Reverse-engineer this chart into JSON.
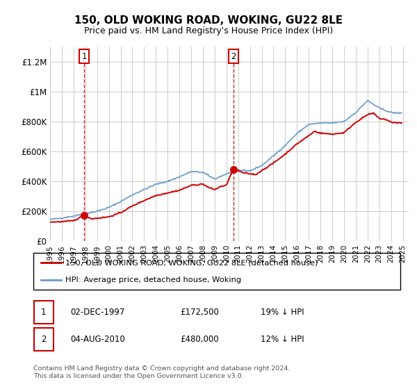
{
  "title": "150, OLD WOKING ROAD, WOKING, GU22 8LE",
  "subtitle": "Price paid vs. HM Land Registry's House Price Index (HPI)",
  "ylabel_ticks": [
    "£0",
    "£200K",
    "£400K",
    "£600K",
    "£800K",
    "£1M",
    "£1.2M"
  ],
  "ytick_values": [
    0,
    200000,
    400000,
    600000,
    800000,
    1000000,
    1200000
  ],
  "ylim": [
    0,
    1300000
  ],
  "xlim_start": 1995.0,
  "xlim_end": 2025.5,
  "sale1_date": 1997.92,
  "sale1_price": 172500,
  "sale2_date": 2010.58,
  "sale2_price": 480000,
  "legend_line1": "150, OLD WOKING ROAD, WOKING, GU22 8LE (detached house)",
  "legend_line2": "HPI: Average price, detached house, Woking",
  "table_row1": [
    "1",
    "02-DEC-1997",
    "£172,500",
    "19% ↓ HPI"
  ],
  "table_row2": [
    "2",
    "04-AUG-2010",
    "£480,000",
    "12% ↓ HPI"
  ],
  "footer": "Contains HM Land Registry data © Crown copyright and database right 2024.\nThis data is licensed under the Open Government Licence v3.0.",
  "hpi_color": "#6699cc",
  "price_color": "#cc0000",
  "grid_color": "#cccccc",
  "dashed_color": "#cc0000",
  "hpi_anchors_x": [
    1995.0,
    1996.0,
    1997.0,
    1998.0,
    1999.0,
    2000.0,
    2001.0,
    2002.0,
    2003.0,
    2004.0,
    2005.0,
    2006.0,
    2007.0,
    2008.0,
    2009.0,
    2010.0,
    2011.0,
    2012.0,
    2013.0,
    2014.0,
    2015.0,
    2016.0,
    2017.0,
    2018.0,
    2019.0,
    2020.0,
    2021.0,
    2022.0,
    2023.0,
    2024.0,
    2024.9
  ],
  "hpi_anchors_y": [
    145000,
    155000,
    168000,
    185000,
    200000,
    225000,
    265000,
    310000,
    345000,
    380000,
    400000,
    430000,
    465000,
    460000,
    415000,
    450000,
    475000,
    470000,
    505000,
    570000,
    640000,
    720000,
    780000,
    790000,
    790000,
    800000,
    860000,
    940000,
    890000,
    860000,
    855000
  ],
  "price_anchors_x": [
    1995.0,
    1996.0,
    1997.0,
    1997.92,
    1998.5,
    1999.0,
    2000.0,
    2001.0,
    2002.0,
    2003.0,
    2004.0,
    2005.0,
    2006.0,
    2007.0,
    2008.0,
    2008.5,
    2009.0,
    2009.5,
    2010.0,
    2010.58,
    2011.0,
    2011.5,
    2012.0,
    2012.5,
    2013.0,
    2014.0,
    2015.0,
    2016.0,
    2017.0,
    2017.5,
    2018.0,
    2019.0,
    2020.0,
    2021.0,
    2022.0,
    2022.5,
    2023.0,
    2023.5,
    2024.0,
    2024.9
  ],
  "price_anchors_y": [
    128000,
    130000,
    137000,
    172500,
    150000,
    153000,
    163000,
    190000,
    235000,
    272000,
    305000,
    323000,
    340000,
    373000,
    382000,
    358000,
    345000,
    365000,
    375000,
    480000,
    470000,
    455000,
    450000,
    445000,
    472000,
    522000,
    582000,
    650000,
    705000,
    735000,
    722000,
    715000,
    725000,
    795000,
    845000,
    855000,
    820000,
    815000,
    795000,
    790000
  ]
}
